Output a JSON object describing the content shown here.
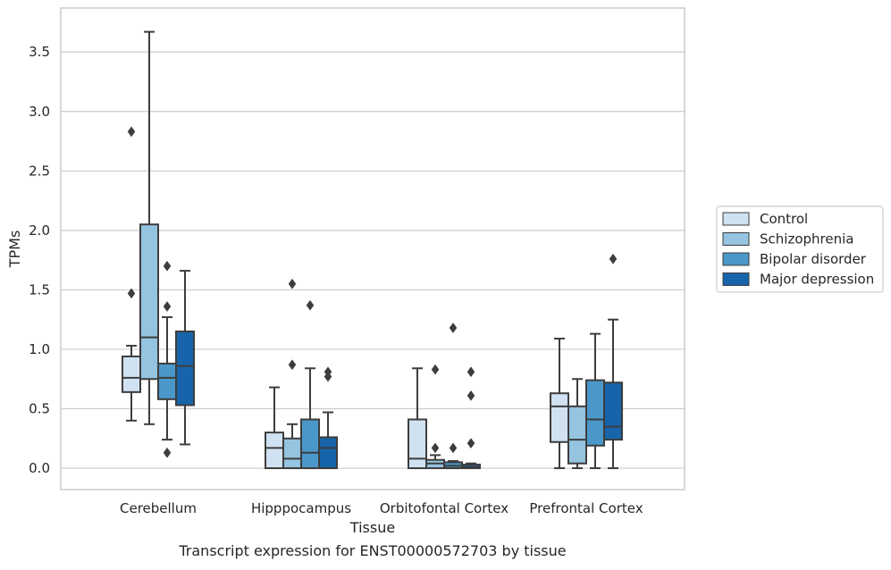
{
  "chart_data": {
    "type": "box",
    "title": "",
    "caption": "Transcript expression for ENST00000572703 by tissue",
    "xlabel": "Tissue",
    "ylabel": "TPMs",
    "ylim": [
      -0.18,
      3.87
    ],
    "yticks": [
      0.0,
      0.5,
      1.0,
      1.5,
      2.0,
      2.5,
      3.0,
      3.5
    ],
    "ytick_labels": [
      "0.0",
      "0.5",
      "1.0",
      "1.5",
      "2.0",
      "2.5",
      "3.0",
      "3.5"
    ],
    "grid": "horizontal",
    "legend_position": "right",
    "categories": [
      "Cerebellum",
      "Hipppocampus",
      "Orbitofontal Cortex",
      "Prefrontal Cortex"
    ],
    "series": [
      {
        "name": "Control",
        "color": "#d0e1f2",
        "boxes": [
          {
            "whisker_low": 0.4,
            "q1": 0.64,
            "median": 0.76,
            "q3": 0.94,
            "whisker_high": 1.03,
            "outliers": [
              1.47,
              2.83
            ]
          },
          {
            "whisker_low": 0.0,
            "q1": 0.0,
            "median": 0.17,
            "q3": 0.3,
            "whisker_high": 0.68,
            "outliers": []
          },
          {
            "whisker_low": 0.0,
            "q1": 0.0,
            "median": 0.08,
            "q3": 0.41,
            "whisker_high": 0.84,
            "outliers": []
          },
          {
            "whisker_low": 0.0,
            "q1": 0.22,
            "median": 0.52,
            "q3": 0.63,
            "whisker_high": 1.09,
            "outliers": []
          }
        ]
      },
      {
        "name": "Schizophrenia",
        "color": "#94c4df",
        "boxes": [
          {
            "whisker_low": 0.37,
            "q1": 0.75,
            "median": 1.1,
            "q3": 2.05,
            "whisker_high": 3.67,
            "outliers": []
          },
          {
            "whisker_low": 0.0,
            "q1": 0.0,
            "median": 0.08,
            "q3": 0.25,
            "whisker_high": 0.37,
            "outliers": [
              0.87,
              1.55
            ]
          },
          {
            "whisker_low": 0.0,
            "q1": 0.0,
            "median": 0.04,
            "q3": 0.07,
            "whisker_high": 0.11,
            "outliers": [
              0.17,
              0.83
            ]
          },
          {
            "whisker_low": 0.0,
            "q1": 0.04,
            "median": 0.24,
            "q3": 0.52,
            "whisker_high": 0.75,
            "outliers": []
          }
        ]
      },
      {
        "name": "Bipolar disorder",
        "color": "#4a98c9",
        "boxes": [
          {
            "whisker_low": 0.24,
            "q1": 0.58,
            "median": 0.76,
            "q3": 0.88,
            "whisker_high": 1.27,
            "outliers": [
              0.13,
              1.36,
              1.7
            ]
          },
          {
            "whisker_low": 0.0,
            "q1": 0.0,
            "median": 0.13,
            "q3": 0.41,
            "whisker_high": 0.84,
            "outliers": [
              1.37
            ]
          },
          {
            "whisker_low": 0.0,
            "q1": 0.0,
            "median": 0.02,
            "q3": 0.05,
            "whisker_high": 0.06,
            "outliers": [
              0.17,
              1.18
            ]
          },
          {
            "whisker_low": 0.0,
            "q1": 0.19,
            "median": 0.41,
            "q3": 0.74,
            "whisker_high": 1.13,
            "outliers": []
          }
        ]
      },
      {
        "name": "Major depression",
        "color": "#1764ab",
        "boxes": [
          {
            "whisker_low": 0.2,
            "q1": 0.53,
            "median": 0.86,
            "q3": 1.15,
            "whisker_high": 1.66,
            "outliers": []
          },
          {
            "whisker_low": 0.0,
            "q1": 0.0,
            "median": 0.17,
            "q3": 0.26,
            "whisker_high": 0.47,
            "outliers": [
              0.77,
              0.81
            ]
          },
          {
            "whisker_low": 0.0,
            "q1": 0.0,
            "median": 0.01,
            "q3": 0.03,
            "whisker_high": 0.04,
            "outliers": [
              0.21,
              0.61,
              0.81
            ]
          },
          {
            "whisker_low": 0.0,
            "q1": 0.24,
            "median": 0.35,
            "q3": 0.72,
            "whisker_high": 1.25,
            "outliers": [
              1.76
            ]
          }
        ]
      }
    ],
    "colors": {
      "grid": "#cccccc",
      "frame": "#cccccc",
      "box_edge": "#3d3d3d",
      "legend_border": "#cccccc"
    }
  }
}
